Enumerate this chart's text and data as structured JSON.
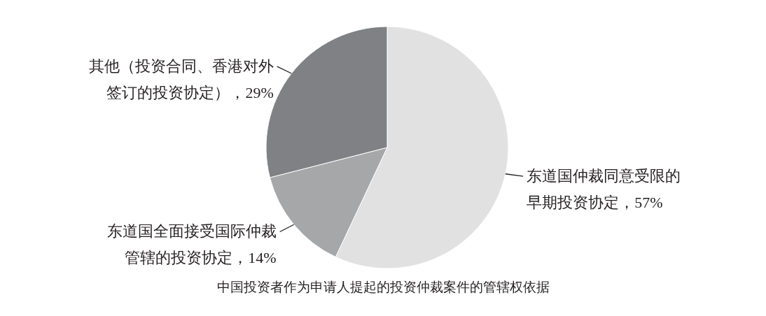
{
  "chart_data": {
    "type": "pie",
    "title": "中国投资者作为申请人提起的投资仲裁案件的管辖权依据",
    "categories": [
      "东道国仲裁同意受限的早期投资协定，57%",
      "东道国全面接受国际仲裁管辖的投资协定，14%",
      "其他（投资合同、香港对外签订的投资协定），29%"
    ],
    "values": [
      57,
      14,
      29
    ],
    "colors": [
      "#e1e1e2",
      "#a6a7a9",
      "#808184"
    ],
    "legend": false
  }
}
